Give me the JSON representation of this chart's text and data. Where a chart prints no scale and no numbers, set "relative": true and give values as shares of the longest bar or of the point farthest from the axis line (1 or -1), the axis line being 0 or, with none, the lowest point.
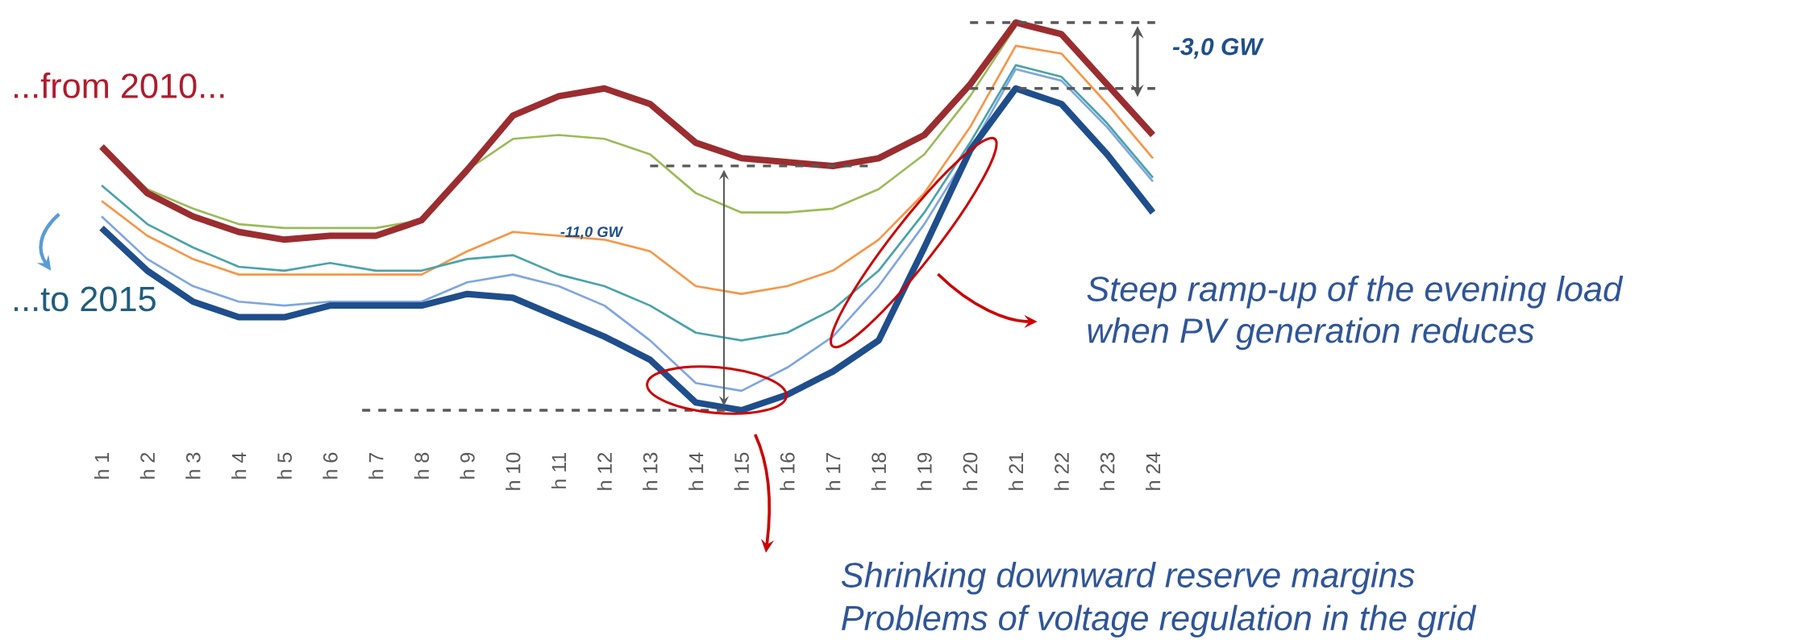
{
  "chart_data": {
    "type": "line",
    "relative": true,
    "marker": "none",
    "line_style": "solid",
    "categories": [
      "h 1",
      "h 2",
      "h 3",
      "h 4",
      "h 5",
      "h 6",
      "h 7",
      "h 8",
      "h 9",
      "h 10",
      "h 11",
      "h 12",
      "h 13",
      "h 14",
      "h 15",
      "h 16",
      "h 17",
      "h 18",
      "h 19",
      "h 20",
      "h 21",
      "h 22",
      "h 23",
      "h 24"
    ],
    "series": [
      {
        "color": "#9bbb59",
        "values": [
          0.68,
          0.57,
          0.52,
          0.48,
          0.47,
          0.47,
          0.47,
          0.49,
          0.62,
          0.7,
          0.71,
          0.7,
          0.66,
          0.56,
          0.51,
          0.51,
          0.52,
          0.57,
          0.66,
          0.81,
          0.99,
          null,
          null,
          null
        ]
      },
      {
        "color": "#f79646",
        "values": [
          0.54,
          0.45,
          0.39,
          0.35,
          0.35,
          0.35,
          0.35,
          0.35,
          0.41,
          0.46,
          0.45,
          0.44,
          0.41,
          0.32,
          0.3,
          0.32,
          0.36,
          0.44,
          0.56,
          0.73,
          0.94,
          0.92,
          0.79,
          0.65
        ]
      },
      {
        "color": "#4aa3a8",
        "values": [
          0.58,
          0.48,
          0.42,
          0.37,
          0.36,
          0.38,
          0.36,
          0.36,
          0.39,
          0.4,
          0.35,
          0.32,
          0.27,
          0.2,
          0.18,
          0.2,
          0.26,
          0.36,
          0.51,
          0.69,
          0.89,
          0.86,
          0.74,
          0.6
        ]
      },
      {
        "color": "#7ea6e0",
        "values": [
          0.5,
          0.39,
          0.32,
          0.28,
          0.27,
          0.28,
          0.28,
          0.28,
          0.33,
          0.35,
          0.32,
          0.27,
          0.18,
          0.07,
          0.05,
          0.11,
          0.19,
          0.32,
          0.48,
          0.67,
          0.88,
          0.85,
          0.73,
          0.59
        ]
      },
      {
        "color": "#9b2d30",
        "values": [
          0.68,
          0.56,
          0.5,
          0.46,
          0.44,
          0.45,
          0.45,
          0.49,
          0.62,
          0.76,
          0.81,
          0.83,
          0.79,
          0.69,
          0.65,
          0.64,
          0.63,
          0.65,
          0.71,
          0.84,
          1.0,
          0.97,
          0.84,
          0.71
        ]
      },
      {
        "color": "#1f4e8c",
        "values": [
          0.47,
          0.36,
          0.28,
          0.24,
          0.24,
          0.27,
          0.27,
          0.27,
          0.3,
          0.29,
          0.24,
          0.19,
          0.13,
          0.02,
          0.0,
          0.04,
          0.1,
          0.18,
          0.42,
          0.67,
          0.83,
          0.79,
          0.66,
          0.51
        ]
      }
    ],
    "ref_lines": [
      {
        "axis": "y",
        "value": 1.0,
        "color": "#595959",
        "line_style": "dashed"
      },
      {
        "axis": "y",
        "value": 0.83,
        "color": "#595959",
        "line_style": "dashed"
      },
      {
        "axis": "y",
        "value": 0.63,
        "color": "#595959",
        "line_style": "dashed"
      },
      {
        "axis": "y",
        "value": 0.0,
        "color": "#595959",
        "line_style": "dashed"
      }
    ],
    "annotations": [
      "...from 2010...",
      "...to 2015",
      "-11,0 GW",
      "-3,0 GW",
      "Steep ramp-up of the evening load",
      "when PV generation reduces",
      "Shrinking downward reserve margins",
      "Problems of voltage regulation in the grid"
    ]
  }
}
